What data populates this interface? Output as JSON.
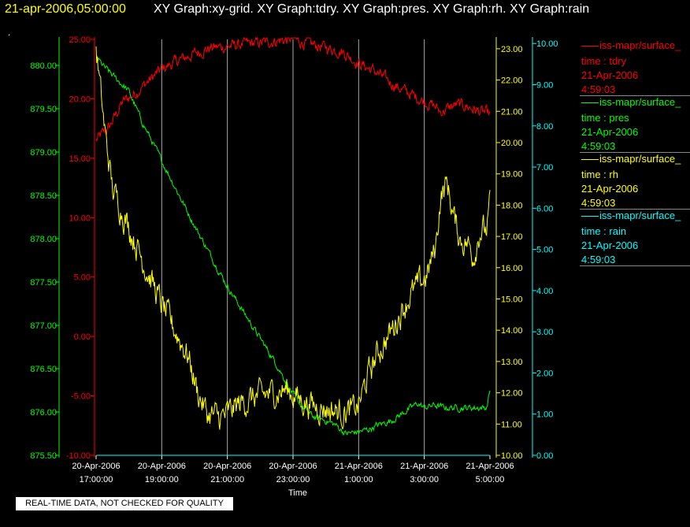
{
  "header": {
    "timestamp": "21-apr-2006,05:00:00",
    "graph_titles": "XY Graph:xy-grid.  XY Graph:tdry.  XY Graph:pres.  XY Graph:rh.  XY Graph:rain",
    "dot": "."
  },
  "footer": {
    "quality_note": "REAL-TIME DATA, NOT CHECKED FOR QUALITY"
  },
  "colors": {
    "tdry": "#ff0000",
    "pres": "#00ff00",
    "rh": "#ffff00",
    "rain": "#00ffff",
    "grid": "#aaaaaa"
  },
  "legend": [
    {
      "source": "iss-mapr/surface_",
      "label": "time : tdry",
      "date": "21-Apr-2006",
      "time": "4:59:03",
      "color": "#ff0000"
    },
    {
      "source": "iss-mapr/surface_",
      "label": "time : pres",
      "date": "21-Apr-2006",
      "time": "4:59:03",
      "color": "#00ff00"
    },
    {
      "source": "iss-mapr/surface_",
      "label": "time : rh",
      "date": "21-Apr-2006",
      "time": "4:59:03",
      "color": "#ffff00"
    },
    {
      "source": "iss-mapr/surface_",
      "label": "time : rain",
      "date": "21-Apr-2006",
      "time": "4:59:03",
      "color": "#00ffff"
    }
  ],
  "chart_data": {
    "type": "line",
    "xlabel": "Time",
    "x_unit": "hours",
    "x_ticks": [
      {
        "value": 17,
        "label": [
          "20-Apr-2006",
          "17:00:00"
        ]
      },
      {
        "value": 19,
        "label": [
          "20-Apr-2006",
          "19:00:00"
        ]
      },
      {
        "value": 21,
        "label": [
          "20-Apr-2006",
          "21:00:00"
        ]
      },
      {
        "value": 23,
        "label": [
          "20-Apr-2006",
          "23:00:00"
        ]
      },
      {
        "value": 25,
        "label": [
          "21-Apr-2006",
          "1:00:00"
        ]
      },
      {
        "value": 27,
        "label": [
          "21-Apr-2006",
          "3:00:00"
        ]
      },
      {
        "value": 29,
        "label": [
          "21-Apr-2006",
          "5:00:00"
        ]
      }
    ],
    "xlim": [
      17,
      29
    ],
    "grid": true,
    "axes": {
      "tdry": {
        "ylim": [
          -10,
          25
        ],
        "ticks": [
          "-10.00",
          "-5.00",
          "0.00",
          "5.00",
          "10.00",
          "15.00",
          "20.00",
          "25.00"
        ]
      },
      "pres": {
        "ylim": [
          875.5,
          880.3
        ],
        "ticks": [
          "875.50",
          "876.00",
          "876.50",
          "877.00",
          "877.50",
          "878.00",
          "878.50",
          "879.00",
          "879.50",
          "880.00"
        ]
      },
      "rh": {
        "ylim": [
          10,
          23.3
        ],
        "ticks": [
          "10.00",
          "11.00",
          "12.00",
          "13.00",
          "14.00",
          "15.00",
          "16.00",
          "17.00",
          "18.00",
          "19.00",
          "20.00",
          "21.00",
          "22.00",
          "23.00"
        ]
      },
      "rain": {
        "ylim": [
          0,
          10.1
        ],
        "ticks": [
          "0.00",
          "1.00",
          "2.00",
          "3.00",
          "4.00",
          "5.00",
          "6.00",
          "7.00",
          "8.00",
          "9.00",
          "10.00"
        ]
      }
    },
    "series": [
      {
        "key": "tdry",
        "x": [
          17,
          17.4,
          17.8,
          18.2,
          18.6,
          19.0,
          19.5,
          20.0,
          20.5,
          21.0,
          21.5,
          22.0,
          22.5,
          23.0,
          23.5,
          24.0,
          24.5,
          25.0,
          25.5,
          26.0,
          26.5,
          27.0,
          27.3,
          27.5,
          27.8,
          28.0,
          28.3,
          28.6,
          29.0
        ],
        "values": [
          16.5,
          17.6,
          19.7,
          20.5,
          21.5,
          22.5,
          23.2,
          23.8,
          24.3,
          24.4,
          24.6,
          24.7,
          24.9,
          25.0,
          24.6,
          24.3,
          24.0,
          23.0,
          22.3,
          21.3,
          20.5,
          19.8,
          19.4,
          18.9,
          19.3,
          19.5,
          19.4,
          19.0,
          18.7
        ],
        "noise": 0.4
      },
      {
        "key": "pres",
        "x": [
          17,
          17.2,
          17.6,
          18.0,
          18.4,
          18.8,
          19.2,
          19.6,
          20.0,
          20.5,
          21.0,
          21.5,
          22.0,
          22.5,
          23.0,
          23.3,
          23.6,
          24.0,
          24.3,
          24.6,
          25.0,
          25.3,
          25.6,
          26.0,
          26.4,
          26.8,
          27.0,
          27.3,
          27.6,
          28.0,
          28.5,
          28.9,
          29.0
        ],
        "values": [
          880.1,
          880.0,
          879.85,
          879.7,
          879.35,
          879.05,
          878.75,
          878.45,
          878.15,
          877.8,
          877.45,
          877.15,
          876.85,
          876.55,
          876.2,
          876.05,
          875.95,
          875.9,
          875.85,
          875.75,
          875.77,
          875.8,
          875.85,
          875.9,
          876.0,
          876.1,
          876.05,
          876.08,
          876.05,
          876.05,
          876.05,
          876.05,
          876.25
        ],
        "noise": 0.03
      },
      {
        "key": "rh",
        "x": [
          17,
          17.1,
          17.25,
          17.5,
          17.8,
          18.2,
          18.6,
          19.0,
          19.4,
          19.8,
          20.1,
          20.4,
          20.8,
          21.0,
          21.3,
          21.7,
          22.0,
          22.4,
          22.8,
          23.2,
          23.6,
          24.0,
          24.4,
          24.8,
          25.0,
          25.3,
          25.6,
          25.9,
          26.2,
          26.5,
          26.8,
          27.1,
          27.35,
          27.5,
          27.7,
          27.9,
          28.1,
          28.3,
          28.5,
          28.7,
          28.9,
          29.0
        ],
        "values": [
          23.0,
          22.0,
          20.5,
          18.5,
          17.8,
          16.8,
          15.8,
          14.8,
          14.0,
          13.2,
          12.0,
          11.3,
          11.2,
          11.3,
          11.6,
          11.8,
          11.9,
          12.0,
          12.1,
          11.8,
          11.6,
          11.5,
          11.4,
          11.4,
          11.6,
          12.6,
          13.3,
          13.8,
          14.4,
          15.0,
          15.4,
          15.8,
          16.7,
          18.3,
          18.7,
          17.6,
          16.9,
          16.8,
          16.4,
          17.2,
          17.2,
          18.0
        ],
        "noise": 0.35
      },
      {
        "key": "rain",
        "x": [
          17,
          29
        ],
        "values": [
          0,
          0
        ],
        "noise": 0
      }
    ]
  }
}
